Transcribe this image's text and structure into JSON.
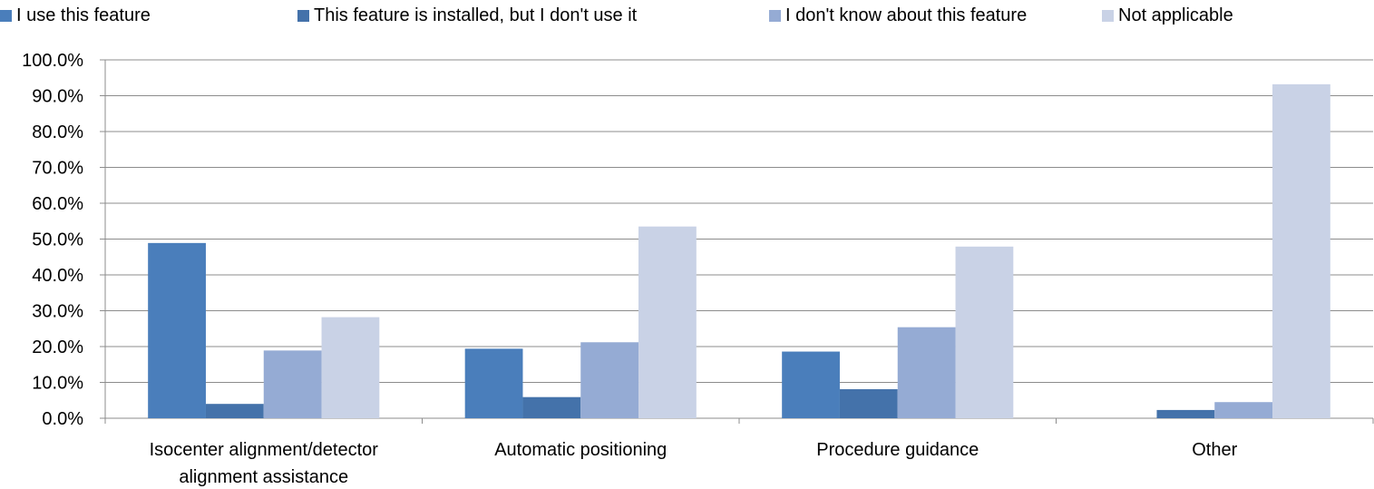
{
  "chart_data": {
    "type": "bar",
    "categories": [
      [
        "Isocenter alignment/detector",
        "alignment assistance"
      ],
      [
        "Automatic positioning"
      ],
      [
        "Procedure guidance"
      ],
      [
        "Other"
      ]
    ],
    "series": [
      {
        "name": "I use this feature",
        "color": "#4a7ebb",
        "values": [
          48.9,
          19.4,
          18.6,
          0.0
        ]
      },
      {
        "name": "This feature is installed, but I don't use it",
        "color": "#4472aa",
        "values": [
          4.0,
          5.9,
          8.1,
          2.3
        ]
      },
      {
        "name": "I don't know about this feature",
        "color": "#95abd4",
        "values": [
          18.9,
          21.2,
          25.4,
          4.5
        ]
      },
      {
        "name": "Not applicable",
        "color": "#c9d2e6",
        "values": [
          28.2,
          53.5,
          47.9,
          93.2
        ]
      }
    ],
    "yticks": [
      "0.0%",
      "10.0%",
      "20.0%",
      "30.0%",
      "40.0%",
      "50.0%",
      "60.0%",
      "70.0%",
      "80.0%",
      "90.0%",
      "100.0%"
    ],
    "ylim": [
      0,
      100
    ],
    "grid": true,
    "legend_position": "top",
    "title": "",
    "xlabel": "",
    "ylabel": ""
  }
}
